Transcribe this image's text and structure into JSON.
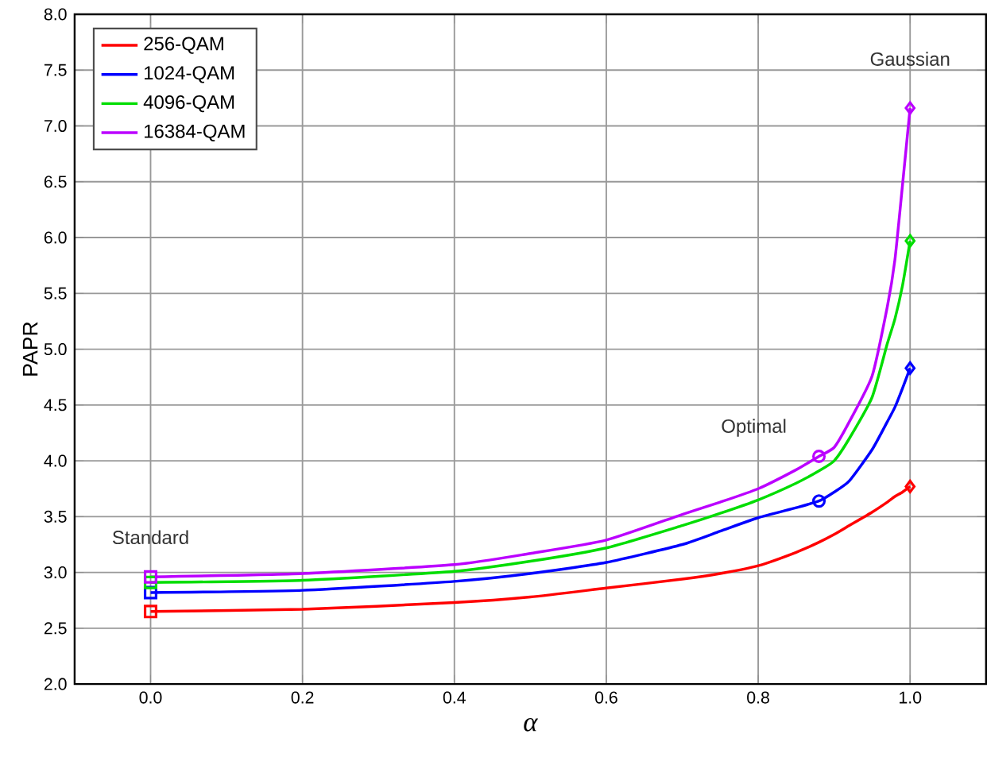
{
  "chart_data": {
    "type": "line",
    "xlabel": "α",
    "ylabel": "PAPR",
    "xlim": [
      -0.1,
      1.1
    ],
    "ylim": [
      2,
      8
    ],
    "xticks": [
      {
        "value": 0,
        "label": "0.0"
      },
      {
        "value": 0.2,
        "label": "0.2"
      },
      {
        "value": 0.4,
        "label": "0.4"
      },
      {
        "value": 0.6,
        "label": "0.6"
      },
      {
        "value": 0.8,
        "label": "0.8"
      },
      {
        "value": 1,
        "label": "1.0"
      }
    ],
    "yticks": [
      {
        "value": 2,
        "label": "2.0"
      },
      {
        "value": 2.5,
        "label": "2.5"
      },
      {
        "value": 3,
        "label": "3.0"
      },
      {
        "value": 3.5,
        "label": "3.5"
      },
      {
        "value": 4,
        "label": "4.0"
      },
      {
        "value": 4.5,
        "label": "4.5"
      },
      {
        "value": 5,
        "label": "5.0"
      },
      {
        "value": 5.5,
        "label": "5.5"
      },
      {
        "value": 6,
        "label": "6.0"
      },
      {
        "value": 6.5,
        "label": "6.5"
      },
      {
        "value": 7,
        "label": "7.0"
      },
      {
        "value": 7.5,
        "label": "7.5"
      },
      {
        "value": 8,
        "label": "8.0"
      }
    ],
    "grid": true,
    "legend": "top left",
    "marker": "none",
    "line_style": "solid",
    "x": [
      0,
      0.2,
      0.4,
      0.5,
      0.6,
      0.7,
      0.75,
      0.8,
      0.85,
      0.88,
      0.9,
      0.92,
      0.95,
      0.97,
      0.98,
      0.99,
      1.0
    ],
    "series": [
      {
        "name": "256-QAM",
        "color": "#ff0000",
        "values": [
          2.65,
          2.67,
          2.73,
          2.78,
          2.86,
          2.94,
          2.99,
          3.06,
          3.18,
          3.27,
          3.34,
          3.42,
          3.54,
          3.63,
          3.68,
          3.72,
          3.77
        ]
      },
      {
        "name": "1024-QAM",
        "color": "#0000ff",
        "values": [
          2.82,
          2.84,
          2.92,
          2.99,
          3.09,
          3.25,
          3.37,
          3.49,
          3.58,
          3.64,
          3.72,
          3.82,
          4.1,
          4.35,
          4.48,
          4.65,
          4.83
        ]
      },
      {
        "name": "4096-QAM",
        "color": "#00dd00",
        "values": [
          2.91,
          2.93,
          3.01,
          3.1,
          3.22,
          3.42,
          3.53,
          3.65,
          3.8,
          3.91,
          4.0,
          4.2,
          4.57,
          5.05,
          5.27,
          5.57,
          5.97
        ]
      },
      {
        "name": "16384-QAM",
        "color": "#bb00ff",
        "values": [
          2.96,
          2.99,
          3.07,
          3.17,
          3.29,
          3.52,
          3.63,
          3.75,
          3.92,
          4.04,
          4.12,
          4.35,
          4.76,
          5.38,
          5.8,
          6.47,
          7.16
        ]
      },
      {
        "type": "scatter",
        "marker": "square",
        "x": [
          0,
          0,
          0,
          0
        ],
        "values": [
          2.65,
          2.82,
          2.91,
          2.96
        ],
        "colors": [
          "#ff0000",
          "#0000ff",
          "#00dd00",
          "#bb00ff"
        ]
      },
      {
        "type": "scatter",
        "marker": "circle",
        "x": [
          0.88,
          0.88
        ],
        "values": [
          3.64,
          4.04
        ],
        "colors": [
          "#0000ff",
          "#bb00ff"
        ]
      },
      {
        "type": "scatter",
        "marker": "diamond",
        "x": [
          1,
          1,
          1,
          1
        ],
        "values": [
          3.77,
          4.83,
          5.97,
          7.16
        ],
        "colors": [
          "#ff0000",
          "#0000ff",
          "#00dd00",
          "#bb00ff"
        ]
      }
    ],
    "annotations": [
      "Standard",
      "Optimal",
      "Gaussian"
    ]
  }
}
